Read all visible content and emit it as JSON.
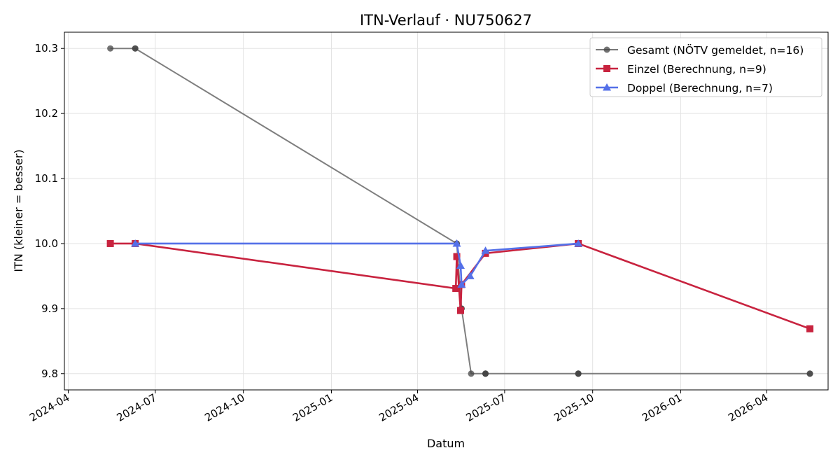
{
  "chart_data": {
    "type": "line",
    "title": "ITN-Verlauf · NU750627",
    "xlabel": "Datum",
    "ylabel": "ITN  (kleiner = besser)",
    "x_axis": "date",
    "xlim": [
      "2024-03-28",
      "2026-06-04"
    ],
    "ylim": [
      9.775,
      10.325
    ],
    "x_ticks": [
      "2024-04-01",
      "2024-07-01",
      "2024-10-01",
      "2025-01-01",
      "2025-04-01",
      "2025-07-01",
      "2025-10-01",
      "2026-01-01",
      "2026-04-01"
    ],
    "x_tick_labels": [
      "2024-04",
      "2024-07",
      "2024-10",
      "2025-01",
      "2025-04",
      "2025-07",
      "2025-10",
      "2026-01",
      "2026-04"
    ],
    "y_ticks": [
      9.8,
      9.9,
      10.0,
      10.1,
      10.2,
      10.3
    ],
    "y_tick_labels": [
      "9.8",
      "9.9",
      "10.0",
      "10.1",
      "10.2",
      "10.3"
    ],
    "grid": true,
    "legend_position": "top-right",
    "series": [
      {
        "name": "Gesamt (NÖTV gemeldet, n=16)",
        "color": "#777777",
        "marker": "circle",
        "points": [
          [
            "2024-05-15",
            10.3
          ],
          [
            "2024-06-10",
            10.3
          ],
          [
            "2024-06-10",
            10.3
          ],
          [
            "2025-05-12",
            10.0
          ],
          [
            "2025-05-12",
            10.0
          ],
          [
            "2025-05-17",
            9.9
          ],
          [
            "2025-05-17",
            9.9
          ],
          [
            "2025-05-27",
            9.8
          ],
          [
            "2025-06-11",
            9.8
          ],
          [
            "2025-06-11",
            9.8
          ],
          [
            "2025-06-11",
            9.8
          ],
          [
            "2025-09-16",
            9.8
          ],
          [
            "2025-09-16",
            9.8
          ],
          [
            "2025-09-16",
            9.8
          ],
          [
            "2026-05-16",
            9.8
          ],
          [
            "2026-05-16",
            9.8
          ]
        ]
      },
      {
        "name": "Einzel (Berechnung, n=9)",
        "color": "#c8233f",
        "marker": "square",
        "points": [
          [
            "2024-05-15",
            10.0
          ],
          [
            "2024-06-10",
            10.0
          ],
          [
            "2025-05-11",
            9.931
          ],
          [
            "2025-05-12",
            9.98
          ],
          [
            "2025-05-16",
            9.897
          ],
          [
            "2025-05-17",
            9.937
          ],
          [
            "2025-06-11",
            9.985
          ],
          [
            "2025-09-16",
            10.0
          ],
          [
            "2026-05-16",
            9.869
          ]
        ]
      },
      {
        "name": "Doppel (Berechnung, n=7)",
        "color": "#5470e8",
        "marker": "triangle",
        "points": [
          [
            "2024-06-10",
            10.0
          ],
          [
            "2025-05-12",
            10.0
          ],
          [
            "2025-05-16",
            9.966
          ],
          [
            "2025-05-17",
            9.937
          ],
          [
            "2025-05-26",
            9.95
          ],
          [
            "2025-06-11",
            9.989
          ],
          [
            "2025-09-16",
            10.0
          ]
        ]
      }
    ]
  }
}
